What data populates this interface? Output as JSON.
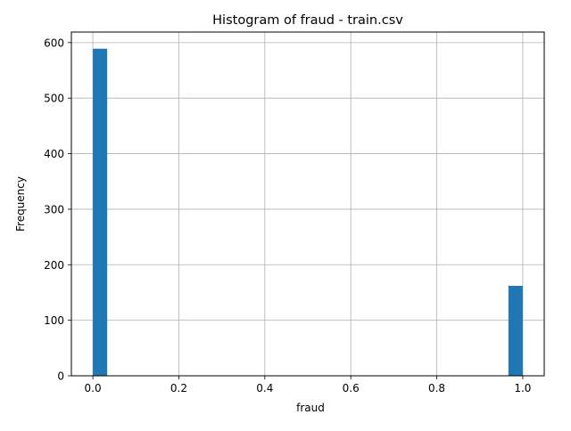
{
  "chart_data": {
    "type": "bar",
    "title": "Histogram of fraud - train.csv",
    "xlabel": "fraud",
    "ylabel": "Frequency",
    "xlim": [
      -0.05,
      1.05
    ],
    "ylim": [
      0,
      619
    ],
    "x_ticks": [
      0.0,
      0.2,
      0.4,
      0.6,
      0.8,
      1.0
    ],
    "x_tick_labels": [
      "0.0",
      "0.2",
      "0.4",
      "0.6",
      "0.8",
      "1.0"
    ],
    "y_ticks": [
      0,
      100,
      200,
      300,
      400,
      500,
      600
    ],
    "y_tick_labels": [
      "0",
      "100",
      "200",
      "300",
      "400",
      "500",
      "600"
    ],
    "grid": true,
    "bar_color": "#1f77b4",
    "bins": [
      {
        "start": 0.0,
        "end": 0.0333,
        "count": 589
      },
      {
        "start": 0.9667,
        "end": 1.0,
        "count": 162
      }
    ]
  }
}
